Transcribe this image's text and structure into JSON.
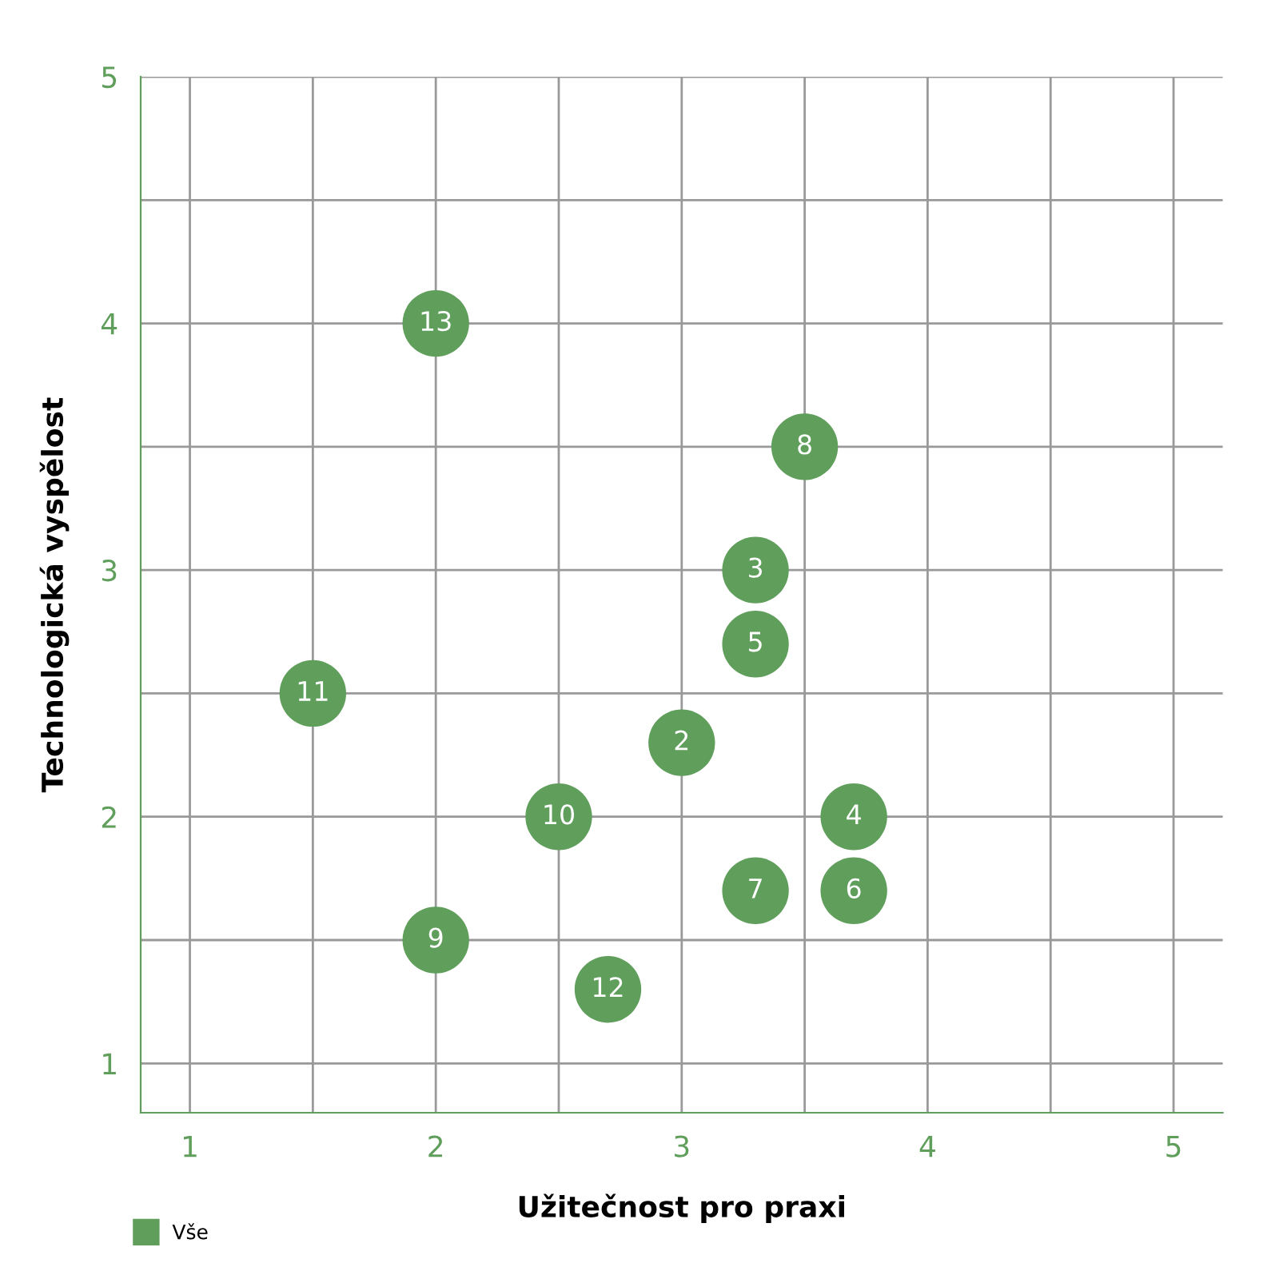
{
  "chart_data": {
    "type": "scatter",
    "xlabel": "Užitečnost pro praxi",
    "ylabel": "Technologická vyspělost",
    "xlim": [
      0.8,
      5.2
    ],
    "ylim": [
      0.8,
      5.0
    ],
    "xticks": [
      1,
      {
        "value": 1.5,
        "label": null
      },
      2,
      {
        "value": 2.5,
        "label": null
      },
      3,
      {
        "value": 3.5,
        "label": null
      },
      4,
      {
        "value": 4.5,
        "label": null
      },
      5
    ],
    "yticks": [
      1,
      {
        "value": 1.5,
        "label": null
      },
      2,
      {
        "value": 2.5,
        "label": null
      },
      3,
      {
        "value": 3.5,
        "label": null
      },
      4,
      {
        "value": 4.5,
        "label": null
      },
      5
    ],
    "grid": true,
    "legend": "bottom left",
    "marker": "circle",
    "series": [
      {
        "name": "Vše",
        "color": "#5f9e5b",
        "x": [
          2,
          3.5,
          3.3,
          3.3,
          1.5,
          3,
          2.5,
          3.7,
          3.3,
          3.7,
          2,
          2.7
        ],
        "values": [
          4,
          3.5,
          3,
          2.7,
          2.5,
          2.3,
          2,
          2,
          1.7,
          1.7,
          1.5,
          1.3
        ]
      }
    ],
    "annotations": [
      {
        "text": "13",
        "x": 2,
        "y": 4
      },
      {
        "text": "8",
        "x": 3.5,
        "y": 3.5
      },
      {
        "text": "3",
        "x": 3.3,
        "y": 3
      },
      {
        "text": "5",
        "x": 3.3,
        "y": 2.7
      },
      {
        "text": "11",
        "x": 1.5,
        "y": 2.5
      },
      {
        "text": "2",
        "x": 3,
        "y": 2.3
      },
      {
        "text": "10",
        "x": 2.5,
        "y": 2
      },
      {
        "text": "4",
        "x": 3.7,
        "y": 2
      },
      {
        "text": "7",
        "x": 3.3,
        "y": 1.7
      },
      {
        "text": "6",
        "x": 3.7,
        "y": 1.7
      },
      {
        "text": "9",
        "x": 2,
        "y": 1.5
      },
      {
        "text": "12",
        "x": 2.7,
        "y": 1.3
      }
    ]
  }
}
